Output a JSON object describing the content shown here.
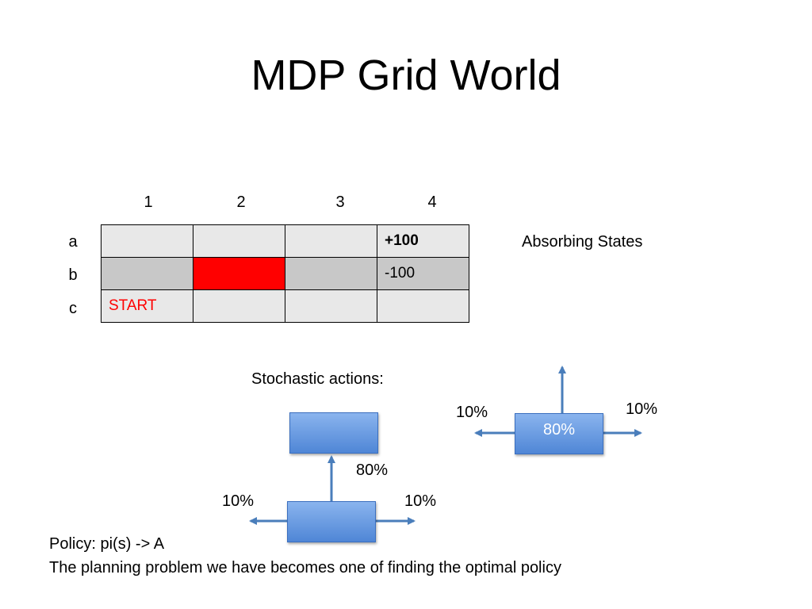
{
  "slide": {
    "title": "MDP Grid World"
  },
  "grid": {
    "columns": [
      "1",
      "2",
      "3",
      "4"
    ],
    "rows": [
      {
        "label": "a",
        "cells": [
          "",
          "",
          "",
          "+100"
        ]
      },
      {
        "label": "b",
        "cells": [
          "",
          "",
          "",
          "-100"
        ]
      },
      {
        "label": "c",
        "cells": [
          "START",
          "",
          "",
          ""
        ]
      }
    ],
    "colors": {
      "light_cell": "#e8e8e8",
      "dark_cell": "#c8c8c8",
      "wall": "#ff0000",
      "start_text": "#ff0000"
    }
  },
  "absorbing_label": "Absorbing States",
  "stochastic": {
    "heading": "Stochastic actions:",
    "diagram1": {
      "forward": "80%",
      "left": "10%",
      "right": "10%"
    },
    "diagram2": {
      "box_label": "80%",
      "left": "10%",
      "right": "10%"
    },
    "colors": {
      "box": "#4f86d6",
      "arrow": "#4a7ebb"
    }
  },
  "policy": {
    "line1": "Policy: pi(s) -> A",
    "line2": "The planning problem we have becomes one of finding the optimal policy"
  }
}
